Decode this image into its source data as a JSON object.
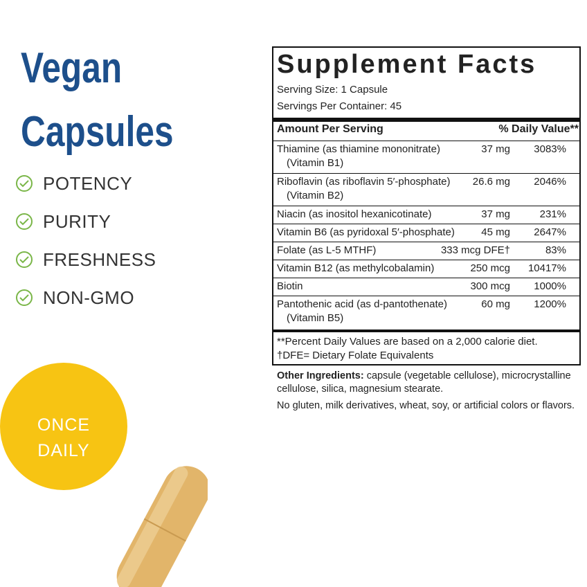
{
  "heading": [
    "Vegan",
    "Capsules"
  ],
  "features": [
    "POTENCY",
    "PURITY",
    "FRESHNESS",
    "NON-GMO"
  ],
  "badge": [
    "ONCE",
    "DAILY"
  ],
  "facts": {
    "title": "Supplement Facts",
    "serving_size": "Serving Size: 1 Capsule",
    "servings_per_container": "Servings Per Container: 45",
    "header": [
      "Amount Per Serving",
      "% Daily Value**"
    ],
    "rows": [
      {
        "name": [
          "Thiamine (as thiamine mononitrate)",
          "(Vitamin B1)"
        ],
        "amount": "37 mg",
        "dv": "3083%"
      },
      {
        "name": [
          "Riboflavin (as riboflavin 5′-phosphate)",
          "(Vitamin B2)"
        ],
        "amount": "26.6 mg",
        "dv": "2046%"
      },
      {
        "name": [
          "Niacin (as inositol hexanicotinate)"
        ],
        "amount": "37 mg",
        "dv": "231%"
      },
      {
        "name": [
          "Vitamin B6 (as pyridoxal 5′-phosphate)"
        ],
        "amount": "45 mg",
        "dv": "2647%"
      },
      {
        "name": [
          "Folate (as L-5 MTHF)"
        ],
        "amount": "333 mcg DFE†",
        "dv": "83%"
      },
      {
        "name": [
          "Vitamin B12 (as methylcobalamin)"
        ],
        "amount": "250 mcg",
        "dv": "10417%"
      },
      {
        "name": [
          "Biotin"
        ],
        "amount": "300 mcg",
        "dv": "1000%"
      },
      {
        "name": [
          "Pantothenic acid (as d-pantothenate)",
          "(Vitamin B5)"
        ],
        "amount": "60 mg",
        "dv": "1200%"
      }
    ],
    "footnotes": [
      "**Percent Daily Values are based on a 2,000 calorie diet.",
      "†DFE= Dietary Folate Equivalents"
    ]
  },
  "other_ingredients": {
    "label": "Other Ingredients:",
    "text": "capsule (vegetable cellulose), microcrystalline cellulose, silica, magnesium stearate."
  },
  "note": "No gluten, milk derivatives, wheat, soy, or artificial colors or flavors."
}
